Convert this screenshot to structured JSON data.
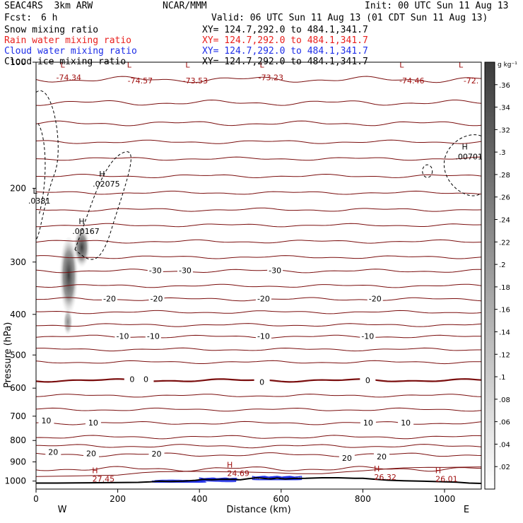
{
  "header": {
    "model": "SEAC4RS  3km ARW",
    "center": "NCAR/MMM",
    "init": "Init: 00 UTC Sun 11 Aug 13",
    "fcst_label": "Fcst:",
    "fcst_value": "6 h",
    "valid": "Valid: 06 UTC Sun 11 Aug 13 (01 CDT Sun 11 Aug 13)"
  },
  "fields": [
    {
      "label": "Snow mixing ratio",
      "xy": "XY= 124.7,292.0 to 484.1,341.7",
      "color": "#000000"
    },
    {
      "label": "Rain water mixing ratio",
      "xy": "XY= 124.7,292.0 to 484.1,341.7",
      "color": "#e8201e"
    },
    {
      "label": "Cloud water mixing ratio",
      "xy": "XY= 124.7,292.0 to 484.1,341.7",
      "color": "#1e2ee8"
    },
    {
      "label": "Cloud ice mixing ratio",
      "xy": "XY= 124.7,292.0 to 484.1,341.7",
      "color": "#000000"
    }
  ],
  "colors": {
    "temperature": "#7a0d0d",
    "cloud_water": "#1e2ee8",
    "terrain": "#000000",
    "label_red": "#a01010"
  },
  "chart_data": {
    "type": "cross-section",
    "xlabel": "Distance (km)",
    "ylabel": "Pressure (hPa)",
    "xlim": [
      0,
      1090
    ],
    "ylim": [
      1045,
      100
    ],
    "y_scale": "log",
    "x_ticks": [
      "0",
      "200",
      "400",
      "600",
      "800",
      "1000"
    ],
    "x_tick_values": [
      0,
      200,
      400,
      600,
      800,
      1000
    ],
    "y_ticks": [
      "100",
      "200",
      "300",
      "400",
      "500",
      "600",
      "700",
      "800",
      "900",
      "1000"
    ],
    "y_tick_values": [
      100,
      200,
      300,
      400,
      500,
      600,
      700,
      800,
      900,
      1000
    ],
    "direction_left": "W",
    "direction_right": "E",
    "colorbar": {
      "unit": "g kg⁻¹",
      "ticks": [
        ".02",
        ".04",
        ".06",
        ".08",
        ".1",
        ".12",
        ".14",
        ".16",
        ".18",
        ".2",
        ".22",
        ".24",
        ".26",
        ".28",
        ".3",
        ".32",
        ".34",
        ".36"
      ],
      "tick_values": [
        0.02,
        0.04,
        0.06,
        0.08,
        0.1,
        0.12,
        0.14,
        0.16,
        0.18,
        0.2,
        0.22,
        0.24,
        0.26,
        0.28,
        0.3,
        0.32,
        0.34,
        0.36
      ],
      "range": [
        0,
        0.38
      ]
    },
    "temperature_labels": [
      {
        "text": "-30",
        "x": 292,
        "p": 315
      },
      {
        "text": "-30",
        "x": 365,
        "p": 315
      },
      {
        "text": "-30",
        "x": 585,
        "p": 315
      },
      {
        "text": "-20",
        "x": 180,
        "p": 368
      },
      {
        "text": "-20",
        "x": 295,
        "p": 368
      },
      {
        "text": "-20",
        "x": 557,
        "p": 368
      },
      {
        "text": "-20",
        "x": 830,
        "p": 368
      },
      {
        "text": "-10",
        "x": 212,
        "p": 452
      },
      {
        "text": "-10",
        "x": 287,
        "p": 452
      },
      {
        "text": "-10",
        "x": 557,
        "p": 452
      },
      {
        "text": "-10",
        "x": 812,
        "p": 452
      },
      {
        "text": "0",
        "x": 235,
        "p": 573
      },
      {
        "text": "0",
        "x": 269,
        "p": 573
      },
      {
        "text": "0",
        "x": 553,
        "p": 582
      },
      {
        "text": "0",
        "x": 812,
        "p": 577
      },
      {
        "text": "10",
        "x": 25,
        "p": 719
      },
      {
        "text": "10",
        "x": 140,
        "p": 728
      },
      {
        "text": "10",
        "x": 813,
        "p": 728
      },
      {
        "text": "10",
        "x": 905,
        "p": 728
      },
      {
        "text": "20",
        "x": 42,
        "p": 855
      },
      {
        "text": "20",
        "x": 135,
        "p": 862
      },
      {
        "text": "20",
        "x": 295,
        "p": 864
      },
      {
        "text": "20",
        "x": 761,
        "p": 884
      },
      {
        "text": "20",
        "x": 846,
        "p": 878
      }
    ],
    "temperature_levels": [
      {
        "p": 110,
        "amp": 1.2,
        "label": null
      },
      {
        "p": 125,
        "amp": 1.2,
        "label": null
      },
      {
        "p": 140,
        "amp": 1.2,
        "label": null
      },
      {
        "p": 155,
        "amp": 1.0,
        "label": null
      },
      {
        "p": 170,
        "amp": 1.0,
        "label": null
      },
      {
        "p": 187,
        "amp": 1.2,
        "label": null
      },
      {
        "p": 205,
        "amp": 1.2,
        "label": null
      },
      {
        "p": 225,
        "amp": 1.4,
        "label": null
      },
      {
        "p": 245,
        "amp": 1.4,
        "label": null
      },
      {
        "p": 268,
        "amp": 1.6,
        "label": null
      },
      {
        "p": 292,
        "amp": 1.6,
        "label": null
      },
      {
        "p": 315,
        "amp": 2.0,
        "label": "-30"
      },
      {
        "p": 342,
        "amp": 2.0,
        "label": null
      },
      {
        "p": 368,
        "amp": 2.2,
        "label": "-20"
      },
      {
        "p": 395,
        "amp": 2.2,
        "label": null
      },
      {
        "p": 424,
        "amp": 2.4,
        "label": null
      },
      {
        "p": 452,
        "amp": 2.4,
        "label": "-10"
      },
      {
        "p": 485,
        "amp": 2.6,
        "label": null
      },
      {
        "p": 520,
        "amp": 2.8,
        "label": null
      },
      {
        "p": 575,
        "amp": 3.0,
        "label": "0",
        "bold": true
      },
      {
        "p": 625,
        "amp": 3.4,
        "label": null
      },
      {
        "p": 675,
        "amp": 3.8,
        "label": null
      },
      {
        "p": 727,
        "amp": 4.2,
        "label": "10"
      },
      {
        "p": 785,
        "amp": 4.8,
        "label": null
      },
      {
        "p": 825,
        "amp": 5.2,
        "label": null
      },
      {
        "p": 865,
        "amp": 6.0,
        "label": "20"
      },
      {
        "p": 935,
        "amp": 8.0,
        "label": null
      }
    ],
    "low_labels": [
      {
        "text": "L",
        "x": 65,
        "p": 103
      },
      {
        "text": "L",
        "x": 228,
        "p": 103
      },
      {
        "text": "L",
        "x": 371,
        "p": 103
      },
      {
        "text": "L",
        "x": 553,
        "p": 103
      },
      {
        "text": "L",
        "x": 895,
        "p": 103
      },
      {
        "text": "L",
        "x": 1040,
        "p": 103
      }
    ],
    "min_values": [
      {
        "text": "-74.34",
        "x": 80,
        "p": 107
      },
      {
        "text": "-74.57",
        "x": 255,
        "p": 109
      },
      {
        "text": "-73.53",
        "x": 390,
        "p": 109
      },
      {
        "text": "-73.23",
        "x": 575,
        "p": 107
      },
      {
        "text": "-74.46",
        "x": 920,
        "p": 109
      },
      {
        "text": "-72.",
        "x": 1065,
        "p": 109
      }
    ],
    "ice_extrema": [
      {
        "marker": "L",
        "value": ".0381",
        "x": 8,
        "p": 214
      },
      {
        "marker": "H",
        "value": ".02075",
        "x": 172,
        "p": 195
      },
      {
        "marker": "H",
        "value": ".00167",
        "x": 122,
        "p": 253
      },
      {
        "marker": "H",
        "value": ".00701",
        "x": 1060,
        "p": 168
      }
    ],
    "surface_highs": [
      {
        "marker": "H",
        "value": "27.45",
        "x": 165,
        "p": 1003
      },
      {
        "marker": "H",
        "value": "24.69",
        "x": 495,
        "p": 973
      },
      {
        "marker": "H",
        "value": "26.32",
        "x": 855,
        "p": 993
      },
      {
        "marker": "H",
        "value": "26.01",
        "x": 1005,
        "p": 1003
      }
    ],
    "terrain": [
      [
        0,
        1011
      ],
      [
        50,
        1011
      ],
      [
        100,
        1010
      ],
      [
        150,
        1009
      ],
      [
        200,
        1008
      ],
      [
        250,
        1007
      ],
      [
        280,
        1004
      ],
      [
        300,
        1001
      ],
      [
        330,
        1002
      ],
      [
        360,
        1000
      ],
      [
        390,
        996
      ],
      [
        410,
        991
      ],
      [
        430,
        993
      ],
      [
        450,
        991
      ],
      [
        480,
        990
      ],
      [
        500,
        993
      ],
      [
        520,
        987
      ],
      [
        540,
        982
      ],
      [
        560,
        986
      ],
      [
        575,
        988
      ],
      [
        590,
        984
      ],
      [
        610,
        989
      ],
      [
        630,
        986
      ],
      [
        660,
        985
      ],
      [
        700,
        982
      ],
      [
        740,
        982
      ],
      [
        780,
        985
      ],
      [
        800,
        985
      ],
      [
        830,
        990
      ],
      [
        860,
        995
      ],
      [
        900,
        998
      ],
      [
        950,
        1001
      ],
      [
        1000,
        1004
      ],
      [
        1030,
        1006
      ],
      [
        1060,
        1011
      ],
      [
        1090,
        1013
      ]
    ]
  }
}
